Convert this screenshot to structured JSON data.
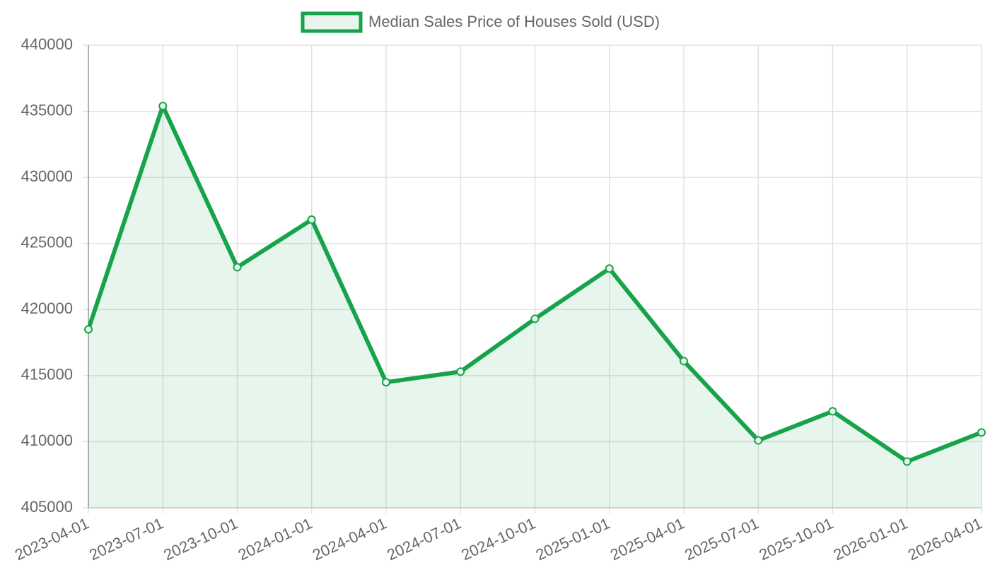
{
  "chart_data": {
    "type": "line",
    "categories": [
      "2023-04-01",
      "2023-07-01",
      "2023-10-01",
      "2024-01-01",
      "2024-04-01",
      "2024-07-01",
      "2024-10-01",
      "2025-01-01",
      "2025-04-01",
      "2025-07-01",
      "2025-10-01",
      "2026-01-01",
      "2026-04-01"
    ],
    "series": [
      {
        "name": "Median Sales Price of Houses Sold (USD)",
        "color": "#17a34a",
        "values": [
          418500,
          435400,
          423200,
          426800,
          414500,
          415300,
          419300,
          423100,
          416100,
          410100,
          412300,
          408500,
          410700
        ]
      }
    ],
    "ylim": [
      405000,
      440000
    ],
    "yticks": [
      405000,
      410000,
      415000,
      420000,
      425000,
      430000,
      435000,
      440000
    ],
    "grid": true,
    "fill": true,
    "legend": "top"
  }
}
